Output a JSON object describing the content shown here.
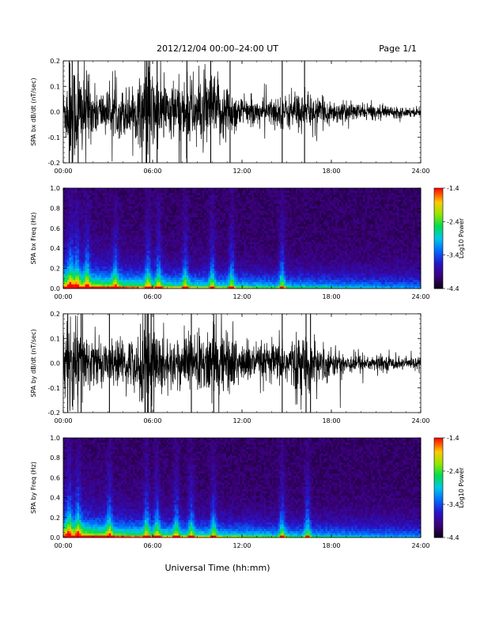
{
  "header": {
    "title": "2012/12/04   00:00–24:00 UT",
    "page": "Page 1/1"
  },
  "chart_data": [
    {
      "type": "line",
      "ylabel": "SPA bx dB/dt (nT/sec)",
      "xlabel": "",
      "xlim": [
        0,
        24
      ],
      "ylim": [
        -0.2,
        0.2
      ],
      "x_ticks": [
        "00:00",
        "06:00",
        "12:00",
        "18:00",
        "24:00"
      ],
      "y_ticks": [
        "-0.2",
        "-0.1",
        "0.0",
        "0.1",
        "0.2"
      ],
      "y_tick_values": [
        -0.2,
        -0.1,
        0.0,
        0.1,
        0.2
      ],
      "envelope": {
        "hours": [
          0,
          0.5,
          1,
          2,
          3,
          4,
          5,
          5.5,
          6,
          7,
          8,
          9,
          10,
          11,
          12,
          13,
          14,
          15,
          16,
          17,
          18,
          19,
          20,
          21,
          22,
          23,
          24
        ],
        "amplitude": [
          0.1,
          0.22,
          0.22,
          0.1,
          0.09,
          0.1,
          0.12,
          0.22,
          0.18,
          0.12,
          0.14,
          0.15,
          0.16,
          0.12,
          0.06,
          0.05,
          0.06,
          0.07,
          0.08,
          0.06,
          0.05,
          0.04,
          0.035,
          0.03,
          0.025,
          0.02,
          0.02
        ]
      },
      "spikes_hours": [
        0.4,
        0.6,
        1.0,
        5.6,
        5.8,
        6.3,
        8.3,
        9.9,
        11.2,
        14.7,
        16.2
      ]
    },
    {
      "type": "heatmap",
      "ylabel": "SPA bx Freq (Hz)",
      "xlim": [
        0,
        24
      ],
      "ylim": [
        0,
        1.0
      ],
      "x_ticks": [
        "00:00",
        "06:00",
        "12:00",
        "18:00",
        "24:00"
      ],
      "y_ticks": [
        "0.0",
        "0.2",
        "0.4",
        "0.6",
        "0.8",
        "1.0"
      ],
      "y_tick_values": [
        0,
        0.2,
        0.4,
        0.6,
        0.8,
        1.0
      ],
      "colorbar": {
        "label": "Log10 Power",
        "range": [
          -4.4,
          -1.4
        ],
        "ticks": [
          "-1.4",
          "-2.4",
          "-3.4",
          "-4.4"
        ],
        "tick_values": [
          -1.4,
          -2.4,
          -3.4,
          -4.4
        ]
      },
      "bursts_hours": [
        0.5,
        0.9,
        1.6,
        3.5,
        5.7,
        6.4,
        8.2,
        10.0,
        11.3,
        14.7
      ]
    },
    {
      "type": "line",
      "ylabel": "SPA by dB/dt (nT/sec)",
      "xlabel": "",
      "xlim": [
        0,
        24
      ],
      "ylim": [
        -0.2,
        0.2
      ],
      "x_ticks": [
        "00:00",
        "06:00",
        "12:00",
        "18:00",
        "24:00"
      ],
      "y_ticks": [
        "-0.2",
        "-0.1",
        "0.0",
        "0.1",
        "0.2"
      ],
      "y_tick_values": [
        -0.2,
        -0.1,
        0.0,
        0.1,
        0.2
      ],
      "envelope": {
        "hours": [
          0,
          0.5,
          1,
          2,
          3,
          4,
          5,
          5.5,
          6,
          7,
          8,
          9,
          10,
          11,
          12,
          13,
          14,
          15,
          16,
          17,
          18,
          19,
          20,
          21,
          22,
          23,
          24
        ],
        "amplitude": [
          0.12,
          0.22,
          0.18,
          0.1,
          0.09,
          0.1,
          0.12,
          0.22,
          0.18,
          0.1,
          0.12,
          0.13,
          0.15,
          0.14,
          0.1,
          0.08,
          0.09,
          0.1,
          0.12,
          0.09,
          0.06,
          0.05,
          0.04,
          0.035,
          0.03,
          0.025,
          0.025
        ]
      },
      "spikes_hours": [
        0.3,
        1.2,
        3.1,
        5.5,
        5.7,
        5.9,
        8.6,
        10.1,
        14.7,
        16.3,
        16.6
      ]
    },
    {
      "type": "heatmap",
      "ylabel": "SPA by Freq (Hz)",
      "xlim": [
        0,
        24
      ],
      "ylim": [
        0,
        1.0
      ],
      "x_ticks": [
        "00:00",
        "06:00",
        "12:00",
        "18:00",
        "24:00"
      ],
      "y_ticks": [
        "0.0",
        "0.2",
        "0.4",
        "0.6",
        "0.8",
        "1.0"
      ],
      "y_tick_values": [
        0,
        0.2,
        0.4,
        0.6,
        0.8,
        1.0
      ],
      "colorbar": {
        "label": "Log10 Power",
        "range": [
          -4.4,
          -1.4
        ],
        "ticks": [
          "-1.4",
          "-2.4",
          "-3.4",
          "-4.4"
        ],
        "tick_values": [
          -1.4,
          -2.4,
          -3.4,
          -4.4
        ]
      },
      "bursts_hours": [
        0.4,
        1.0,
        3.1,
        5.6,
        6.3,
        7.6,
        8.6,
        10.1,
        14.7,
        16.4
      ]
    }
  ],
  "footer": {
    "xlabel": "Universal Time (hh:mm)"
  }
}
